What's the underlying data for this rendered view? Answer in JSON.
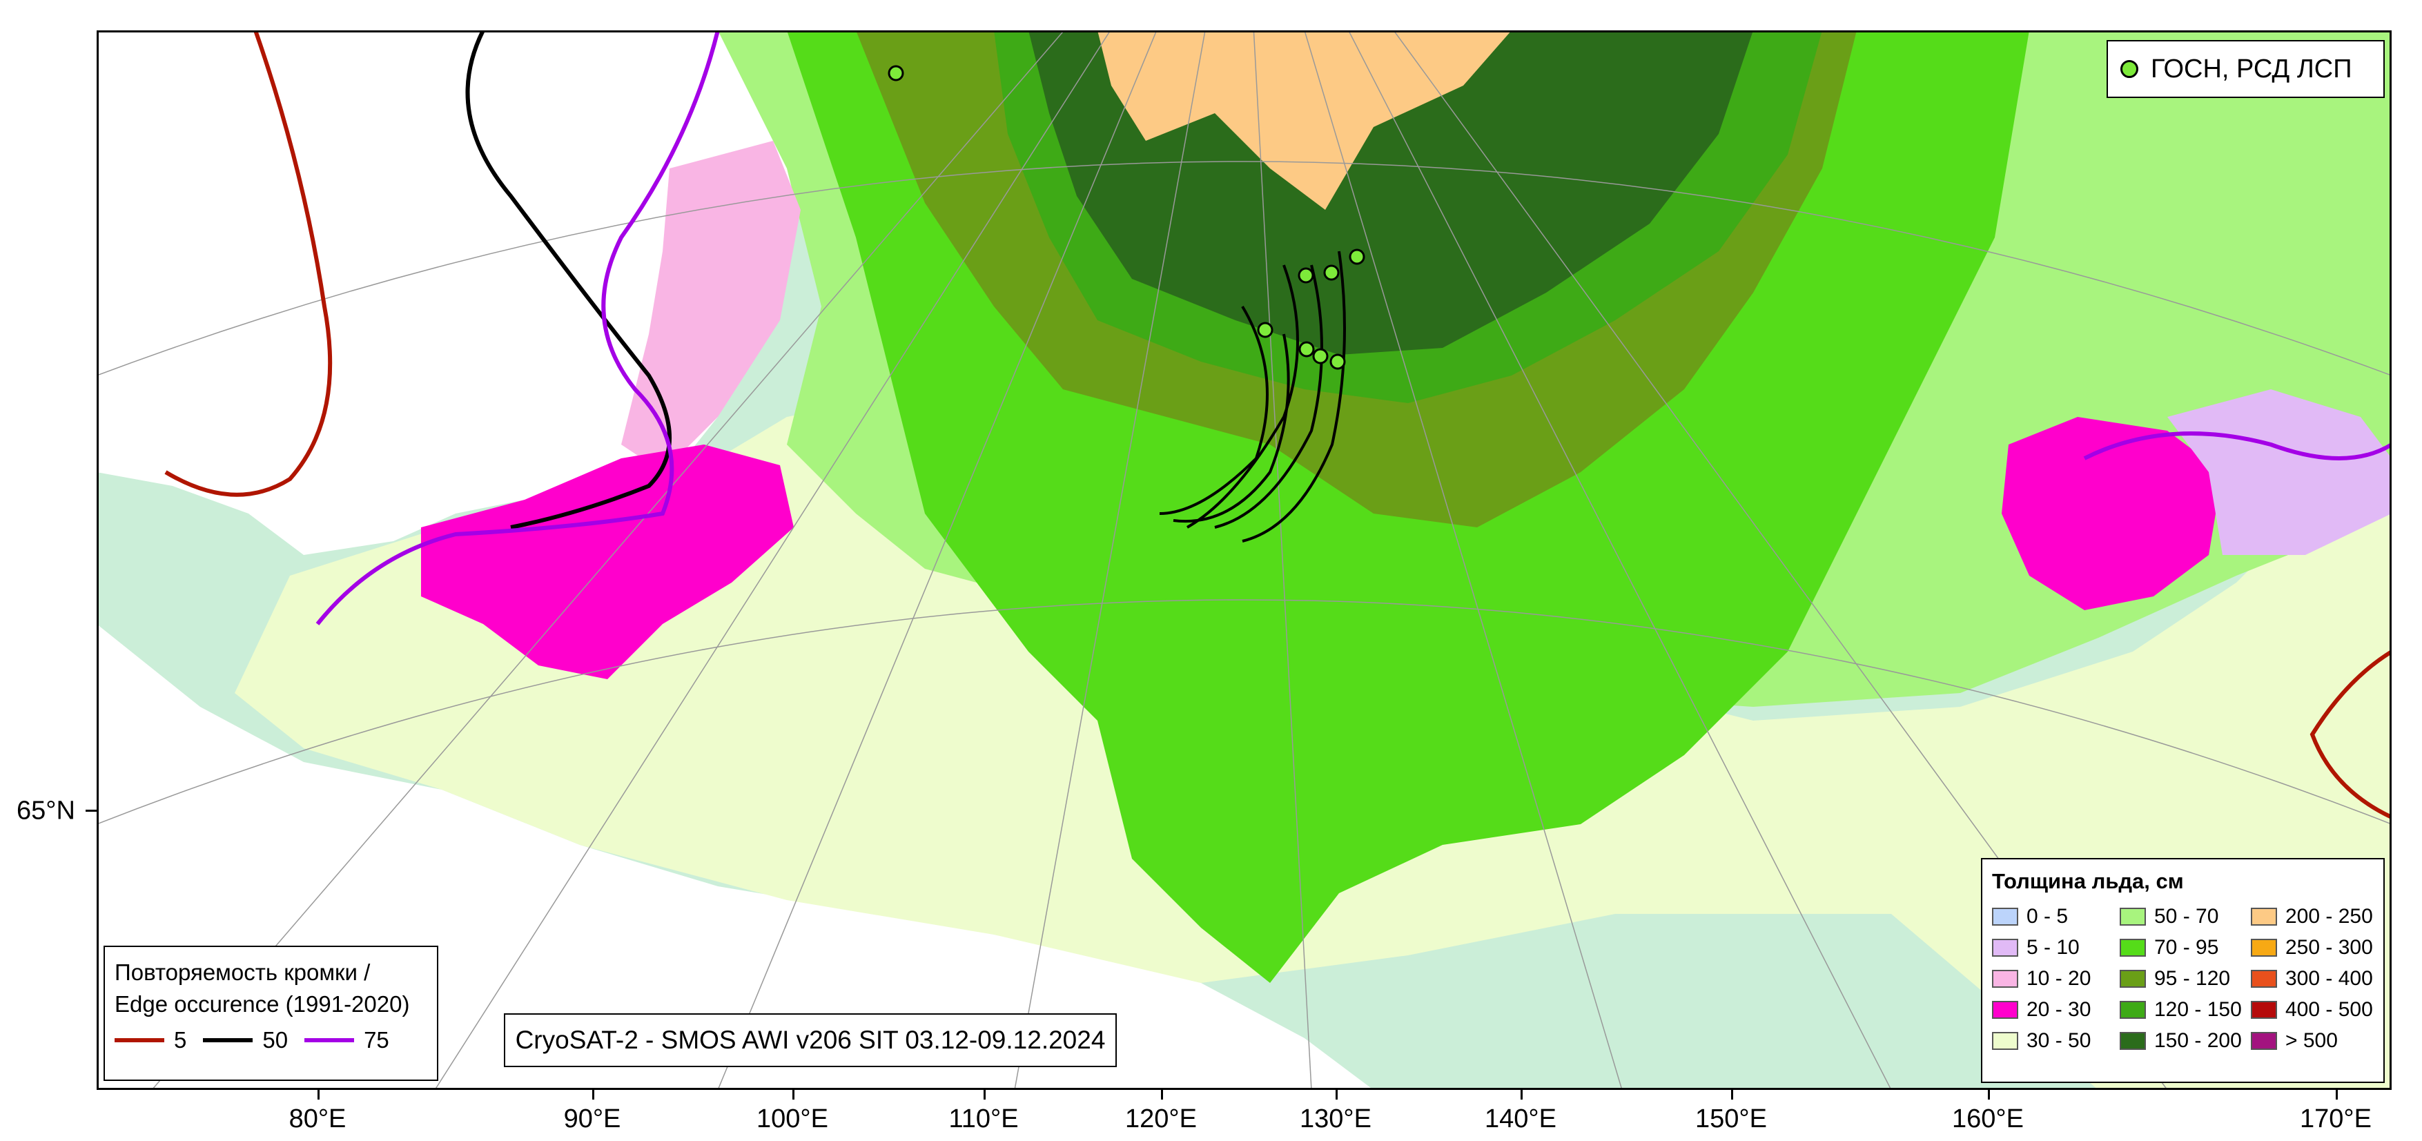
{
  "map": {
    "lon_labels": [
      "80°E",
      "90°E",
      "100°E",
      "110°E",
      "120°E",
      "130°E",
      "140°E",
      "150°E",
      "160°E",
      "170°E"
    ],
    "lat_label": "65°N",
    "colors": {
      "ocean": "#cbeed8",
      "land": "#ffffff",
      "c30_50": "#eefccd",
      "c50_70": "#a8f47e",
      "c70_95": "#55dc19",
      "c95_120": "#6a9f17",
      "c120_150": "#3eaa16",
      "c150_200": "#2b6c1b",
      "c200_250": "#fdca85",
      "c10_20": "#f9b5e4",
      "c5_10": "#e1baf6",
      "c20_30": "#ff00cc"
    }
  },
  "station_legend": {
    "label": "ГОСН, РСД ЛСП",
    "dot_color": "#7dea3a"
  },
  "edge_legend": {
    "title_line1": "Повторяемость кромки /",
    "title_line2": "Edge occurence (1991-2020)",
    "items": [
      {
        "label": "5",
        "color": "#b01500"
      },
      {
        "label": "50",
        "color": "#000000"
      },
      {
        "label": "75",
        "color": "#a400e6"
      }
    ]
  },
  "source": "CryoSAT-2 - SMOS AWI v206 SIT 03.12-09.12.2024",
  "thickness_legend": {
    "title": "Толщина льда, см",
    "items": [
      {
        "label": "0 - 5",
        "color": "#bcd4fb"
      },
      {
        "label": "50 - 70",
        "color": "#a8f47e"
      },
      {
        "label": "200 - 250",
        "color": "#fdca85"
      },
      {
        "label": "5 - 10",
        "color": "#e1baf6"
      },
      {
        "label": "70 - 95",
        "color": "#55dc19"
      },
      {
        "label": "250 - 300",
        "color": "#f7a914"
      },
      {
        "label": "10 - 20",
        "color": "#f9b5e4"
      },
      {
        "label": "95 - 120",
        "color": "#6a9f17"
      },
      {
        "label": "300 - 400",
        "color": "#e8501c"
      },
      {
        "label": "20 - 30",
        "color": "#ff00cc"
      },
      {
        "label": "120 - 150",
        "color": "#3eaa16"
      },
      {
        "label": "400 - 500",
        "color": "#b50a0a"
      },
      {
        "label": "30 - 50",
        "color": "#eefccd"
      },
      {
        "label": "150 - 200",
        "color": "#2b6c1b"
      },
      {
        "label": "> 500",
        "color": "#a3137f"
      }
    ]
  }
}
